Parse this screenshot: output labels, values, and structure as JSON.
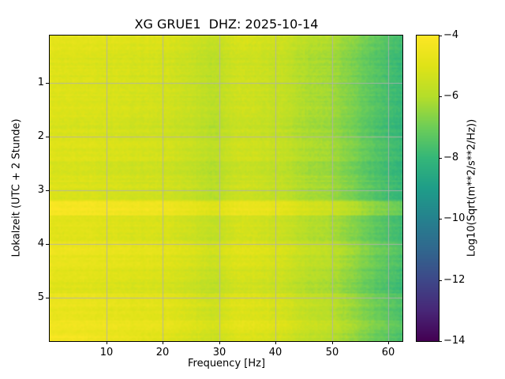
{
  "chart_data": {
    "type": "heatmap",
    "title": "XG GRUE1  DHZ: 2025-10-14",
    "xlabel": "Frequency [Hz]",
    "ylabel": "Lokalzeit (UTC + 2 Stunde)",
    "xlim": [
      0,
      62.5
    ],
    "ylim": [
      0.12,
      5.81
    ],
    "grid": true,
    "grid_color": "#b0b0b0",
    "x_ticks": {
      "values": [
        10,
        20,
        30,
        40,
        50,
        60
      ],
      "labels": [
        "10",
        "20",
        "30",
        "40",
        "50",
        "60"
      ]
    },
    "y_ticks": {
      "values": [
        1,
        2,
        3,
        4,
        5
      ],
      "labels": [
        "1",
        "2",
        "3",
        "4",
        "5"
      ]
    },
    "colorbar": {
      "label": "Log10(Sqrt(m**2/s**2/Hz))",
      "vmin": -14,
      "vmax": -4,
      "tick_values": [
        -4,
        -6,
        -8,
        -10,
        -12,
        -14
      ],
      "tick_labels": [
        "−4",
        "−6",
        "−8",
        "−10",
        "−12",
        "−14"
      ]
    },
    "colormap": "viridis",
    "colormap_anchors": [
      "#440154",
      "#482878",
      "#3e4989",
      "#31688e",
      "#26828e",
      "#1f9e89",
      "#35b779",
      "#6ece58",
      "#b5de2b",
      "#dfe318",
      "#fde725"
    ],
    "values_log10": [
      [
        -4.7,
        -4.8,
        -4.8,
        -4.9,
        -5.0,
        -5.0,
        -5.3,
        -5.6,
        -5.1,
        -5.2,
        -5.4,
        -5.8,
        -6.0,
        -6.6,
        -7.2,
        -7.7
      ],
      [
        -4.9,
        -5.0,
        -5.0,
        -5.1,
        -5.2,
        -5.2,
        -5.5,
        -5.8,
        -5.3,
        -5.4,
        -5.6,
        -6.0,
        -6.2,
        -6.8,
        -7.4,
        -7.9
      ],
      [
        -5.0,
        -5.1,
        -5.1,
        -5.2,
        -5.3,
        -5.3,
        -5.6,
        -5.9,
        -5.4,
        -5.5,
        -5.7,
        -6.1,
        -6.3,
        -6.9,
        -7.5,
        -8.0
      ],
      [
        -5.0,
        -5.1,
        -5.1,
        -5.2,
        -5.3,
        -5.3,
        -5.6,
        -5.9,
        -5.4,
        -5.5,
        -5.7,
        -6.1,
        -6.3,
        -6.9,
        -7.5,
        -8.0
      ],
      [
        -4.9,
        -5.0,
        -5.0,
        -5.1,
        -5.2,
        -5.2,
        -5.5,
        -5.8,
        -5.3,
        -5.4,
        -5.6,
        -6.0,
        -6.2,
        -6.8,
        -7.4,
        -7.9
      ],
      [
        -5.0,
        -5.1,
        -5.1,
        -5.2,
        -5.3,
        -5.3,
        -5.6,
        -5.9,
        -5.4,
        -5.5,
        -5.7,
        -6.1,
        -6.3,
        -6.9,
        -7.5,
        -8.0
      ],
      [
        -5.0,
        -5.1,
        -5.1,
        -5.2,
        -5.3,
        -5.3,
        -5.6,
        -5.9,
        -5.4,
        -5.5,
        -5.7,
        -6.1,
        -6.3,
        -6.9,
        -7.5,
        -8.0
      ],
      [
        -5.1,
        -5.2,
        -5.2,
        -5.3,
        -5.4,
        -5.4,
        -5.7,
        -6.0,
        -5.5,
        -5.6,
        -5.8,
        -6.2,
        -6.4,
        -7.0,
        -7.6,
        -8.1
      ],
      [
        -5.0,
        -5.1,
        -5.1,
        -5.2,
        -5.3,
        -5.3,
        -5.6,
        -5.9,
        -5.4,
        -5.5,
        -5.7,
        -6.1,
        -6.3,
        -6.9,
        -7.5,
        -8.0
      ],
      [
        -5.0,
        -5.1,
        -5.1,
        -5.2,
        -5.3,
        -5.3,
        -5.6,
        -5.9,
        -5.4,
        -5.5,
        -5.7,
        -6.1,
        -6.3,
        -6.9,
        -7.5,
        -8.0
      ],
      [
        -5.1,
        -5.2,
        -5.2,
        -5.3,
        -5.4,
        -5.4,
        -5.7,
        -6.0,
        -5.5,
        -5.6,
        -5.8,
        -6.2,
        -6.4,
        -7.0,
        -7.6,
        -8.1
      ],
      [
        -5.0,
        -5.1,
        -5.1,
        -5.2,
        -5.3,
        -5.3,
        -5.6,
        -5.9,
        -5.4,
        -5.5,
        -5.7,
        -6.1,
        -6.3,
        -6.9,
        -7.5,
        -8.0
      ],
      [
        -5.0,
        -5.1,
        -5.1,
        -5.2,
        -5.3,
        -5.3,
        -5.6,
        -5.9,
        -5.4,
        -5.5,
        -5.7,
        -6.1,
        -6.3,
        -6.9,
        -7.5,
        -8.0
      ],
      [
        -4.1,
        -4.2,
        -4.2,
        -4.3,
        -4.4,
        -4.4,
        -4.7,
        -5.0,
        -4.5,
        -4.6,
        -4.8,
        -5.2,
        -5.4,
        -6.0,
        -6.6,
        -7.1
      ],
      [
        -4.8,
        -4.9,
        -4.9,
        -5.0,
        -5.1,
        -5.1,
        -5.4,
        -5.7,
        -5.2,
        -5.3,
        -5.5,
        -5.9,
        -6.1,
        -6.7,
        -7.3,
        -7.8
      ],
      [
        -4.9,
        -5.0,
        -5.0,
        -5.1,
        -5.2,
        -5.2,
        -5.5,
        -5.8,
        -5.3,
        -5.4,
        -5.6,
        -6.0,
        -6.2,
        -6.8,
        -7.4,
        -7.9
      ],
      [
        -4.5,
        -4.6,
        -4.6,
        -4.7,
        -4.8,
        -4.8,
        -5.1,
        -5.4,
        -4.9,
        -5.0,
        -5.2,
        -5.6,
        -5.8,
        -6.4,
        -7.0,
        -7.5
      ],
      [
        -4.6,
        -4.7,
        -4.7,
        -4.8,
        -4.9,
        -4.9,
        -5.2,
        -5.5,
        -5.0,
        -5.1,
        -5.3,
        -5.7,
        -5.9,
        -6.5,
        -7.1,
        -7.6
      ],
      [
        -4.8,
        -4.9,
        -4.9,
        -5.0,
        -5.1,
        -5.1,
        -5.4,
        -5.7,
        -5.2,
        -5.3,
        -5.5,
        -5.9,
        -6.1,
        -6.7,
        -7.3,
        -7.8
      ],
      [
        -4.9,
        -5.0,
        -5.0,
        -5.1,
        -5.2,
        -5.2,
        -5.5,
        -5.8,
        -5.3,
        -5.4,
        -5.6,
        -6.0,
        -6.2,
        -6.8,
        -7.4,
        -7.9
      ],
      [
        -4.5,
        -4.6,
        -4.6,
        -4.7,
        -4.8,
        -4.8,
        -5.1,
        -5.4,
        -4.9,
        -5.0,
        -5.2,
        -5.6,
        -5.8,
        -6.4,
        -7.0,
        -7.5
      ],
      [
        -4.6,
        -4.7,
        -4.7,
        -4.8,
        -4.9,
        -4.9,
        -5.2,
        -5.5,
        -5.0,
        -5.1,
        -5.3,
        -5.7,
        -5.9,
        -6.5,
        -7.1,
        -7.6
      ],
      [
        -4.4,
        -4.5,
        -4.5,
        -4.6,
        -4.7,
        -4.7,
        -5.0,
        -5.3,
        -4.8,
        -4.9,
        -5.1,
        -5.5,
        -5.7,
        -6.3,
        -6.9,
        -7.4
      ],
      [
        -4.2,
        -4.3,
        -4.4,
        -4.6,
        -4.8,
        -4.9,
        -5.2,
        -5.5,
        -5.0,
        -5.1,
        -5.3,
        -5.7,
        -5.9,
        -6.5,
        -7.1,
        -7.6
      ]
    ]
  }
}
